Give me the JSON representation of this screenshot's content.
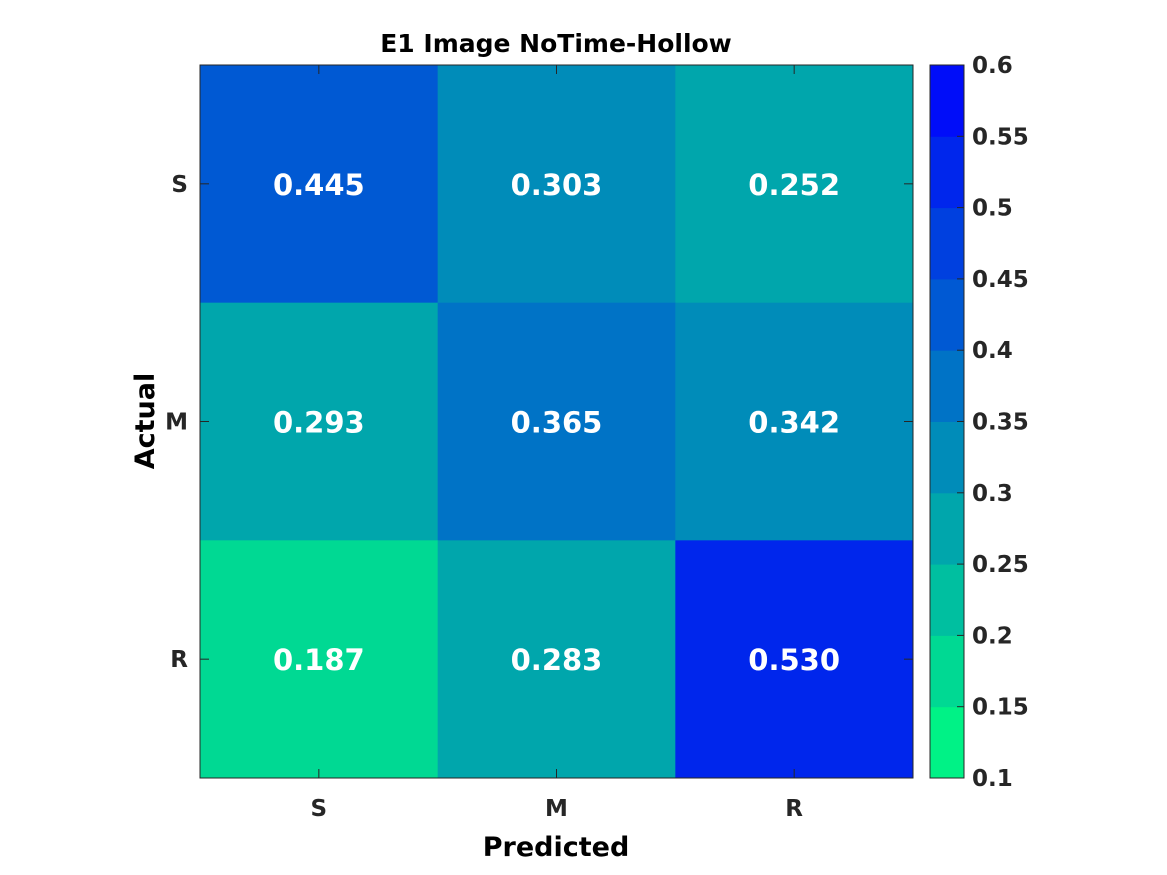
{
  "chart_data": {
    "type": "heatmap",
    "title": "E1 Image NoTime-Hollow",
    "xlabel": "Predicted",
    "ylabel": "Actual",
    "x_categories": [
      "S",
      "M",
      "R"
    ],
    "y_categories": [
      "S",
      "M",
      "R"
    ],
    "values": [
      [
        0.445,
        0.303,
        0.252
      ],
      [
        0.293,
        0.365,
        0.342
      ],
      [
        0.187,
        0.283,
        0.53
      ]
    ],
    "value_labels": [
      [
        "0.445",
        "0.303",
        "0.252"
      ],
      [
        "0.293",
        "0.365",
        "0.342"
      ],
      [
        "0.187",
        "0.283",
        "0.530"
      ]
    ],
    "colorbar": {
      "range": [
        0.1,
        0.6
      ],
      "ticks": [
        0.1,
        0.15,
        0.2,
        0.25,
        0.3,
        0.35,
        0.4,
        0.45,
        0.5,
        0.55,
        0.6
      ],
      "tick_labels": [
        "0.1",
        "0.15",
        "0.2",
        "0.25",
        "0.3",
        "0.35",
        "0.4",
        "0.45",
        "0.5",
        "0.55",
        "0.6"
      ],
      "levels": 10,
      "color_low": "#00ff80",
      "color_high": "#0000ff"
    }
  }
}
